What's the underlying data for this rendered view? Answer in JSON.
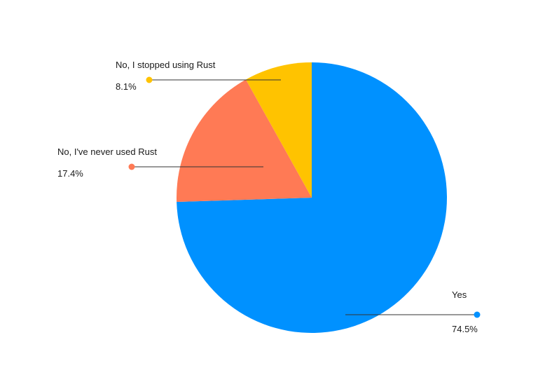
{
  "chart_data": {
    "type": "pie",
    "start_angle": "12 o'clock",
    "direction": "clockwise",
    "slices": [
      {
        "label": "Yes",
        "value": 74.5,
        "value_label": "74.5%",
        "color": "#0091FF"
      },
      {
        "label": "No, I've never used Rust",
        "value": 17.4,
        "value_label": "17.4%",
        "color": "#FF7A55"
      },
      {
        "label": "No, I stopped using Rust",
        "value": 8.1,
        "value_label": "8.1%",
        "color": "#FFC300"
      }
    ]
  }
}
